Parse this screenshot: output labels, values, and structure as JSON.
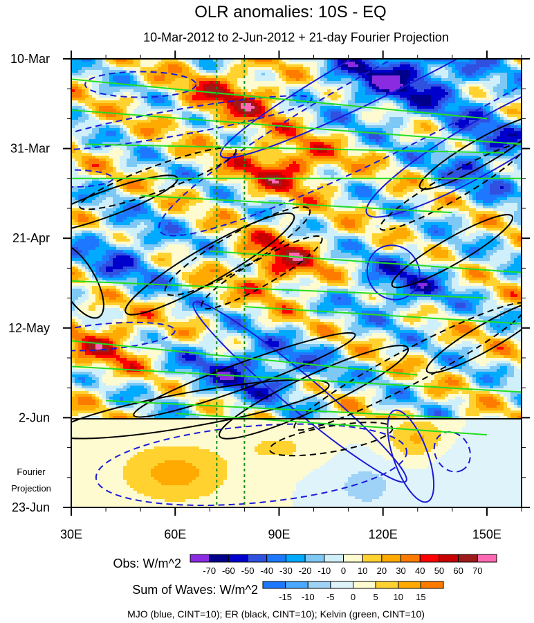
{
  "chart_data": {
    "type": "heatmap",
    "title": "OLR anomalies: 10S - EQ",
    "subtitle": "10-Mar-2012 to 2-Jun-2012 + 21-day Fourier Projection",
    "x_ticks": [
      "30E",
      "60E",
      "90E",
      "120E",
      "150E"
    ],
    "x_tick_values": [
      30,
      60,
      90,
      120,
      150
    ],
    "xlim": [
      30,
      160
    ],
    "y_ticks": [
      "10-Mar",
      "31-Mar",
      "21-Apr",
      "12-May",
      "2-Jun",
      "23-Jun"
    ],
    "y_tick_values": [
      "2012-03-10",
      "2012-03-31",
      "2012-04-21",
      "2012-05-12",
      "2012-06-02",
      "2012-06-23"
    ],
    "projection_label": [
      "Fourier",
      "Projection"
    ],
    "projection_start": "2012-06-02",
    "reference_longitudes": [
      72,
      80
    ],
    "obs_colorbar": {
      "label": "Obs: W/m^2",
      "levels": [
        -70,
        -60,
        -50,
        -40,
        -30,
        -20,
        -10,
        0,
        10,
        20,
        30,
        40,
        50,
        60,
        70
      ],
      "level_labels": [
        "-70",
        "-60",
        "-50",
        "-40",
        "-30",
        "-20",
        "-10",
        "0",
        "10",
        "20",
        "30",
        "40",
        "50",
        "60",
        "70"
      ],
      "colors": [
        "#8a2be2",
        "#00008b",
        "#0000cd",
        "#3050e0",
        "#1e78ff",
        "#00aaff",
        "#7ec8f5",
        "#cfeffa",
        "#fffbd0",
        "#ffd230",
        "#ffaa00",
        "#ff7b00",
        "#ff0000",
        "#c80000",
        "#a01a1a",
        "#ff69b4"
      ]
    },
    "waves_colorbar": {
      "label": "Sum of Waves: W/m^2",
      "levels": [
        -15,
        -10,
        -5,
        0,
        5,
        10,
        15
      ],
      "level_labels": [
        "-15",
        "-10",
        "-5",
        "0",
        "5",
        "10",
        "15"
      ],
      "colors": [
        "#1e78ff",
        "#4aa8ff",
        "#9fd2f7",
        "#dff3fb",
        "#fffbd0",
        "#ffd230",
        "#ffaa00",
        "#ff7b00"
      ]
    },
    "footnote": "MJO (blue, CINT=10); ER (black, CINT=10); Kelvin (green, CINT=10)",
    "contour_colors": {
      "mjo": "#1a1ad9",
      "er": "#000000",
      "kelvin": "#22dd22"
    }
  }
}
